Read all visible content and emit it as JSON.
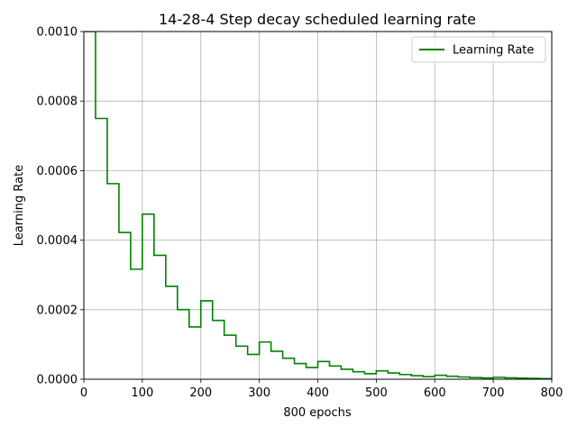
{
  "chart_data": {
    "type": "line",
    "title": "14-28-4 Step decay scheduled learning rate",
    "xlabel": "800 epochs",
    "ylabel": "Learning Rate",
    "xlim": [
      0,
      800
    ],
    "ylim": [
      0,
      0.001
    ],
    "grid": true,
    "legend_position": "top-right",
    "x_ticks": [
      0,
      100,
      200,
      300,
      400,
      500,
      600,
      700,
      800
    ],
    "x_tick_labels": [
      "0",
      "100",
      "200",
      "300",
      "400",
      "500",
      "600",
      "700",
      "800"
    ],
    "y_ticks": [
      0,
      0.0002,
      0.0004,
      0.0006,
      0.0008,
      0.001
    ],
    "y_tick_labels": [
      "0.0000",
      "0.0002",
      "0.0004",
      "0.0006",
      "0.0008",
      "0.0010"
    ],
    "series": [
      {
        "name": "Learning Rate",
        "color": "#008000",
        "step": "post",
        "x": [
          0,
          20,
          40,
          60,
          80,
          100,
          120,
          140,
          160,
          180,
          200,
          220,
          240,
          260,
          280,
          300,
          320,
          340,
          360,
          380,
          400,
          420,
          440,
          460,
          480,
          500,
          520,
          540,
          560,
          580,
          600,
          620,
          640,
          660,
          680,
          700,
          720,
          740,
          760,
          780,
          800
        ],
        "values": [
          0.001,
          0.00075,
          0.0005625,
          0.000422,
          0.0003164,
          0.000475,
          0.0003563,
          0.0002672,
          0.0002004,
          0.0001503,
          0.0002256,
          0.0001692,
          0.0001269,
          9.52e-05,
          7.14e-05,
          0.0001072,
          8.04e-05,
          6.03e-05,
          4.52e-05,
          3.39e-05,
          5.09e-05,
          3.82e-05,
          2.86e-05,
          2.15e-05,
          1.61e-05,
          2.42e-05,
          1.81e-05,
          1.36e-05,
          1.02e-05,
          7.7e-06,
          1.15e-05,
          8.6e-06,
          6.5e-06,
          4.8e-06,
          3.6e-06,
          5.5e-06,
          4.1e-06,
          3.1e-06,
          2.3e-06,
          1.7e-06,
          1.7e-06
        ]
      }
    ]
  }
}
